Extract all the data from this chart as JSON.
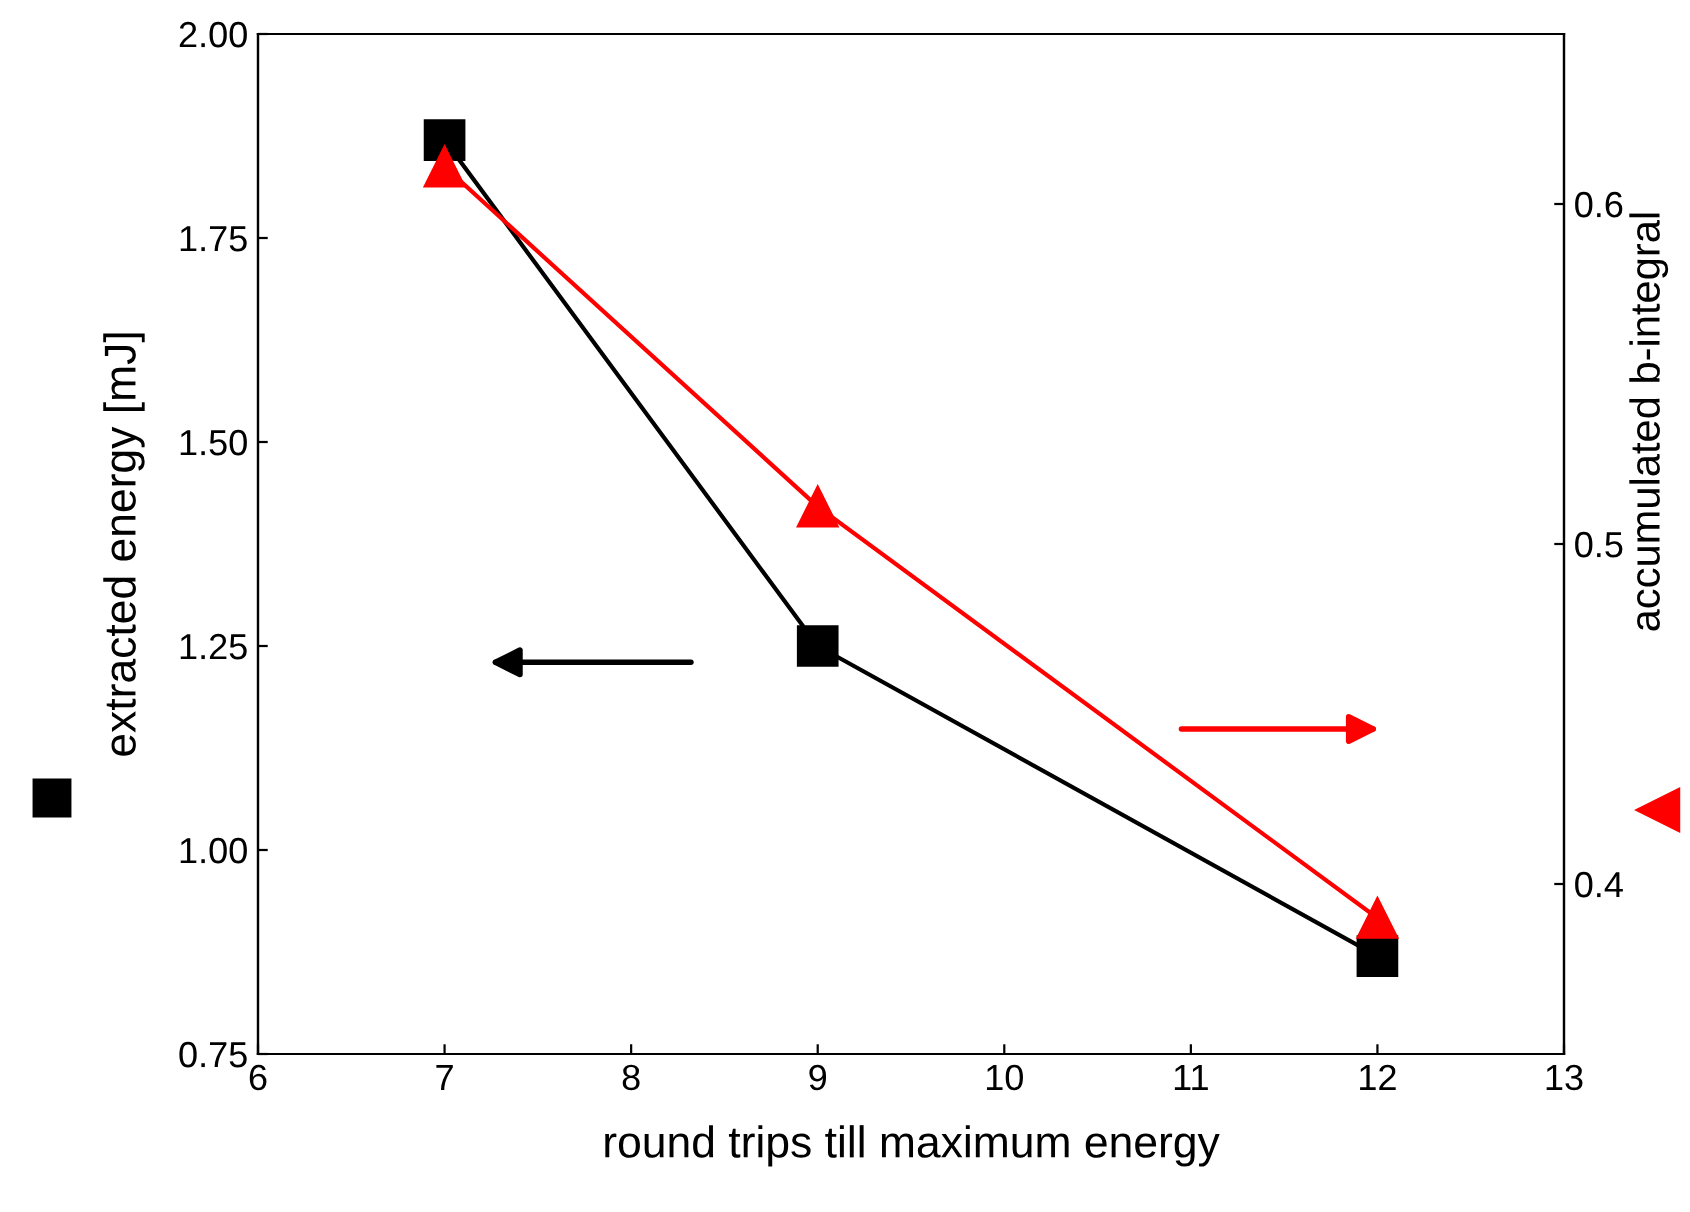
{
  "chart_data": {
    "type": "line",
    "xlabel": "round trips till maximum energy",
    "ylabel": "extracted energy [mJ]",
    "y2label": "accumulated b-integral",
    "x": [
      7,
      9,
      12
    ],
    "series": [
      {
        "color": "#000000",
        "values": [
          1.87,
          1.25,
          0.87
        ],
        "marker": "square"
      },
      {
        "color": "#ff0000",
        "values": [
          0.611,
          0.511,
          0.39
        ],
        "marker": "triangle",
        "axis": "y2"
      }
    ],
    "xlim": [
      6,
      13
    ],
    "xticks": [
      6,
      7,
      8,
      9,
      10,
      11,
      12,
      13
    ],
    "ylim": [
      0.75,
      2.0
    ],
    "yticks": [
      {
        "value": 0.75,
        "label": "0.75"
      },
      {
        "value": 1.0,
        "label": "1.00"
      },
      {
        "value": 1.25,
        "label": "1.25"
      },
      {
        "value": 1.5,
        "label": "1.50"
      },
      {
        "value": 1.75,
        "label": "1.75"
      },
      {
        "value": 2.0,
        "label": "2.00"
      }
    ],
    "y2lim": [
      0.35,
      0.65
    ],
    "y2ticks": [
      0.4,
      0.5,
      0.6
    ],
    "grid": false,
    "legend": false,
    "line_style": "solid"
  }
}
